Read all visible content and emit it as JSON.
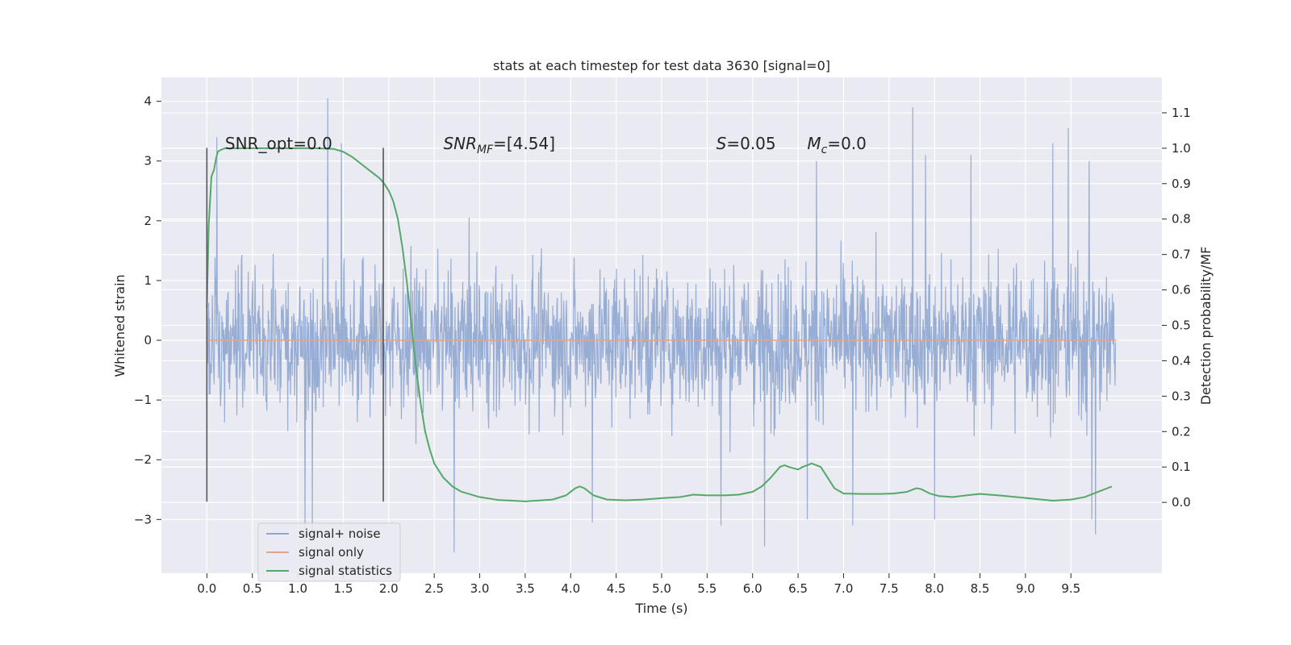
{
  "chart_data": {
    "type": "line",
    "title": "stats at each timestep for test data 3630 [signal=0]",
    "xlabel": "Time (s)",
    "ylabel_left": "Whitened strain",
    "ylabel_right": "Detection probability/MF",
    "xlim": [
      -0.5,
      10.5
    ],
    "ylim_left": [
      -3.9,
      4.4
    ],
    "ylim_right": [
      -0.2,
      1.2
    ],
    "x_ticks": [
      0.0,
      0.5,
      1.0,
      1.5,
      2.0,
      2.5,
      3.0,
      3.5,
      4.0,
      4.5,
      5.0,
      5.5,
      6.0,
      6.5,
      7.0,
      7.5,
      8.0,
      8.5,
      9.0,
      9.5
    ],
    "x_tick_labels": [
      "0.0",
      "0.5",
      "1.0",
      "1.5",
      "2.0",
      "2.5",
      "3.0",
      "3.5",
      "4.0",
      "4.5",
      "5.0",
      "5.5",
      "6.0",
      "6.5",
      "7.0",
      "7.5",
      "8.0",
      "8.5",
      "9.0",
      "9.5"
    ],
    "y_ticks_left": [
      -3,
      -2,
      -1,
      0,
      1,
      2,
      3,
      4
    ],
    "y_tick_labels_left": [
      "−3",
      "−2",
      "−1",
      "0",
      "1",
      "2",
      "3",
      "4"
    ],
    "y_ticks_right": [
      0.0,
      0.1,
      0.2,
      0.3,
      0.4,
      0.5,
      0.6,
      0.7,
      0.8,
      0.9,
      1.0,
      1.1
    ],
    "y_tick_labels_right": [
      "0.0",
      "0.1",
      "0.2",
      "0.3",
      "0.4",
      "0.5",
      "0.6",
      "0.7",
      "0.8",
      "0.9",
      "1.0",
      "1.1"
    ],
    "grid": true,
    "legend_position": "lower-left",
    "vertical_markers": [
      0.0,
      1.94
    ],
    "vertical_marker_range": [
      -2.7,
      3.22
    ],
    "annotations": [
      {
        "id": "snr_opt",
        "x": 0.2,
        "y": 3.2,
        "parts": [
          {
            "t": "SNR_opt=0.0",
            "style": "normal"
          }
        ]
      },
      {
        "id": "snr_mf",
        "x": 2.6,
        "y": 3.2,
        "parts": [
          {
            "t": "SNR",
            "style": "italic"
          },
          {
            "t": "MF",
            "style": "sub-italic"
          },
          {
            "t": "=[4.54]",
            "style": "normal"
          }
        ]
      },
      {
        "id": "s_val",
        "x": 5.6,
        "y": 3.2,
        "parts": [
          {
            "t": "S",
            "style": "italic"
          },
          {
            "t": "=0.05",
            "style": "normal"
          }
        ]
      },
      {
        "id": "mc_val",
        "x": 6.6,
        "y": 3.2,
        "parts": [
          {
            "t": "M",
            "style": "italic"
          },
          {
            "t": "c",
            "style": "sub-italic"
          },
          {
            "t": "=0.0",
            "style": "normal"
          }
        ]
      }
    ],
    "series": [
      {
        "name": "signal+ noise",
        "axis": "left",
        "color": "#8fa6cf",
        "kind": "noise",
        "x_range": [
          0.0,
          9.99
        ],
        "samples": 2000,
        "band_min": -1.5,
        "band_max": 1.45,
        "peaks_up": [
          [
            1.33,
            4.05
          ],
          [
            7.76,
            3.9
          ],
          [
            9.47,
            3.55
          ],
          [
            1.48,
            3.3
          ],
          [
            0.11,
            3.4
          ],
          [
            6.7,
            3.0
          ],
          [
            7.9,
            3.1
          ],
          [
            8.4,
            3.1
          ],
          [
            9.3,
            3.3
          ],
          [
            9.7,
            3.0
          ]
        ],
        "peaks_down": [
          [
            2.72,
            -3.55
          ],
          [
            6.13,
            -3.45
          ],
          [
            1.08,
            -3.3
          ],
          [
            1.16,
            -3.3
          ],
          [
            9.77,
            -3.25
          ],
          [
            9.73,
            -3.0
          ],
          [
            4.24,
            -3.05
          ],
          [
            7.1,
            -3.1
          ],
          [
            8.0,
            -3.0
          ],
          [
            5.65,
            -3.1
          ],
          [
            6.6,
            -3.0
          ]
        ]
      },
      {
        "name": "signal only",
        "axis": "left",
        "color": "#e0a58a",
        "x": [
          0.0,
          10.0
        ],
        "y": [
          0.0,
          0.0
        ]
      },
      {
        "name": "signal statistics",
        "axis": "right",
        "color": "#55a868",
        "x": [
          0.0,
          0.02,
          0.05,
          0.08,
          0.1,
          0.12,
          0.15,
          0.2,
          0.3,
          0.5,
          0.8,
          1.0,
          1.2,
          1.4,
          1.5,
          1.6,
          1.7,
          1.8,
          1.9,
          1.95,
          2.0,
          2.05,
          2.1,
          2.15,
          2.2,
          2.25,
          2.3,
          2.35,
          2.4,
          2.45,
          2.5,
          2.6,
          2.7,
          2.8,
          3.0,
          3.2,
          3.5,
          3.8,
          3.95,
          4.05,
          4.1,
          4.15,
          4.25,
          4.4,
          4.6,
          4.8,
          5.0,
          5.2,
          5.35,
          5.5,
          5.7,
          5.85,
          6.0,
          6.1,
          6.2,
          6.3,
          6.35,
          6.4,
          6.5,
          6.55,
          6.65,
          6.75,
          6.85,
          6.9,
          7.0,
          7.2,
          7.4,
          7.55,
          7.7,
          7.8,
          7.85,
          7.95,
          8.05,
          8.2,
          8.35,
          8.5,
          8.7,
          8.9,
          9.1,
          9.3,
          9.5,
          9.65,
          9.8,
          9.95
        ],
        "y": [
          0.55,
          0.78,
          0.92,
          0.94,
          0.97,
          0.99,
          0.995,
          1.0,
          1.0,
          1.0,
          1.0,
          1.0,
          1.0,
          0.998,
          0.99,
          0.975,
          0.955,
          0.935,
          0.915,
          0.9,
          0.88,
          0.85,
          0.8,
          0.72,
          0.62,
          0.5,
          0.38,
          0.28,
          0.2,
          0.15,
          0.11,
          0.07,
          0.045,
          0.03,
          0.015,
          0.007,
          0.003,
          0.008,
          0.02,
          0.04,
          0.045,
          0.04,
          0.02,
          0.008,
          0.006,
          0.008,
          0.012,
          0.015,
          0.022,
          0.02,
          0.02,
          0.022,
          0.03,
          0.045,
          0.07,
          0.1,
          0.105,
          0.1,
          0.093,
          0.1,
          0.11,
          0.1,
          0.06,
          0.04,
          0.025,
          0.024,
          0.024,
          0.025,
          0.03,
          0.04,
          0.038,
          0.025,
          0.018,
          0.015,
          0.02,
          0.024,
          0.02,
          0.015,
          0.01,
          0.005,
          0.008,
          0.015,
          0.03,
          0.045
        ]
      }
    ]
  }
}
